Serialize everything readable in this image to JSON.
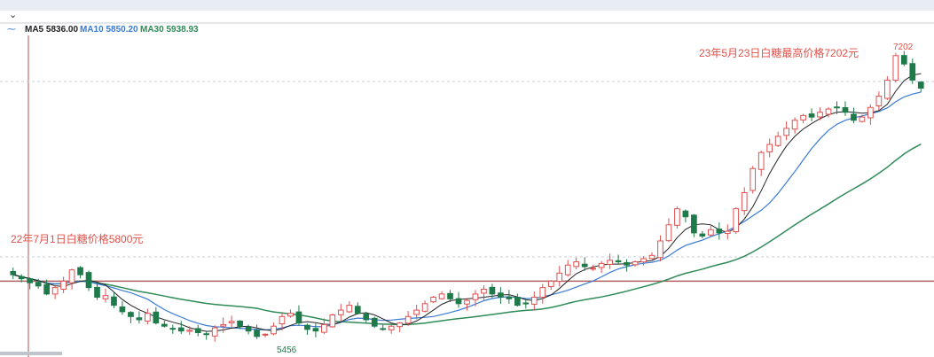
{
  "legend": {
    "ma5": {
      "label": "MA5",
      "value": "5836.00",
      "color": "#222222"
    },
    "ma10": {
      "label": "MA10",
      "value": "5850.20",
      "color": "#3a7bd5"
    },
    "ma30": {
      "label": "MA30",
      "value": "5938.93",
      "color": "#2e8b57"
    }
  },
  "annotations": {
    "start": {
      "text": "22年7月1日白糖价格5800元",
      "color": "#e0504a"
    },
    "peak": {
      "text": "23年5月23日白糖最高价格7202元",
      "color": "#e0504a"
    },
    "low_label": "5456",
    "high_label": "7202"
  },
  "colors": {
    "up": "#e05050",
    "down": "#1f7a4a",
    "ref_line": "#b06060",
    "ma5": "#222222",
    "ma10": "#3a7bd5",
    "ma30": "#2e8b57"
  },
  "chart_data": {
    "type": "candlestick",
    "title": "",
    "series_keypoints": {
      "start_price": 5800,
      "low": 5456,
      "high": 7202
    },
    "ylim": [
      5400,
      7300
    ],
    "reference_price": 5800,
    "closes": [
      5840,
      5815,
      5790,
      5770,
      5720,
      5760,
      5800,
      5870,
      5840,
      5760,
      5700,
      5710,
      5650,
      5610,
      5580,
      5560,
      5600,
      5540,
      5520,
      5505,
      5490,
      5495,
      5480,
      5470,
      5510,
      5530,
      5550,
      5520,
      5490,
      5456,
      5470,
      5520,
      5580,
      5600,
      5540,
      5500,
      5490,
      5530,
      5590,
      5620,
      5650,
      5600,
      5560,
      5520,
      5500,
      5520,
      5540,
      5580,
      5620,
      5660,
      5700,
      5720,
      5690,
      5660,
      5680,
      5720,
      5750,
      5720,
      5700,
      5690,
      5650,
      5660,
      5700,
      5760,
      5800,
      5850,
      5900,
      5920,
      5890,
      5880,
      5910,
      5930,
      5920,
      5900,
      5920,
      5940,
      5960,
      6050,
      6150,
      6250,
      6200,
      6100,
      6080,
      6120,
      6100,
      6110,
      6250,
      6350,
      6500,
      6600,
      6650,
      6700,
      6750,
      6800,
      6830,
      6820,
      6850,
      6870,
      6880,
      6850,
      6800,
      6820,
      6880,
      6950,
      7050,
      7202,
      7150,
      7050,
      7000
    ]
  }
}
